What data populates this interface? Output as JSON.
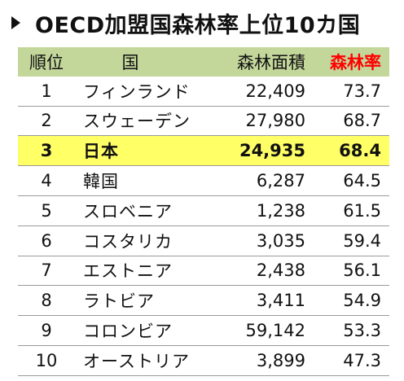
{
  "title": "OECD加盟国森林率上位10カ国",
  "header": {
    "rank": "順位",
    "country": "国",
    "area": "森林面積",
    "rate": "森林率"
  },
  "rows": [
    {
      "rank": "1",
      "country": "フィンランド",
      "area": "22,409",
      "rate": "73.7"
    },
    {
      "rank": "2",
      "country": "スウェーデン",
      "area": "27,980",
      "rate": "68.7"
    },
    {
      "rank": "3",
      "country": "日本",
      "area": "24,935",
      "rate": "68.4"
    },
    {
      "rank": "4",
      "country": "韓国",
      "area": "6,287",
      "rate": "64.5"
    },
    {
      "rank": "5",
      "country": "スロベニア",
      "area": "1,238",
      "rate": "61.5"
    },
    {
      "rank": "6",
      "country": "コスタリカ",
      "area": "3,035",
      "rate": "59.4"
    },
    {
      "rank": "7",
      "country": "エストニア",
      "area": "2,438",
      "rate": "56.1"
    },
    {
      "rank": "8",
      "country": "ラトビア",
      "area": "3,411",
      "rate": "54.9"
    },
    {
      "rank": "9",
      "country": "コロンビア",
      "area": "59,142",
      "rate": "53.3"
    },
    {
      "rank": "10",
      "country": "オーストリア",
      "area": "3,899",
      "rate": "47.3"
    }
  ],
  "colors": {
    "header_bg": "#c4d79b",
    "highlight_bg": "#ffff66",
    "rate_header": "#ff0000"
  }
}
